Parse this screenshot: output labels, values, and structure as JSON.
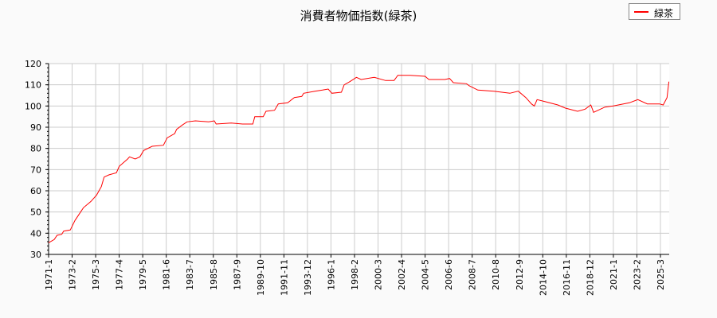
{
  "chart_data": {
    "type": "line",
    "title": "消費者物価指数(緑茶)",
    "xlabel": "",
    "ylabel": "",
    "ylim": [
      30,
      120
    ],
    "yticks": [
      30,
      40,
      50,
      60,
      70,
      80,
      90,
      100,
      110,
      120
    ],
    "xticks": [
      "1971-1",
      "1973-2",
      "1975-3",
      "1977-4",
      "1979-5",
      "1981-6",
      "1983-7",
      "1985-8",
      "1987-9",
      "1989-10",
      "1991-11",
      "1993-12",
      "1996-1",
      "1998-2",
      "2000-3",
      "2002-4",
      "2004-5",
      "2006-6",
      "2008-7",
      "2010-8",
      "2012-9",
      "2014-10",
      "2016-11",
      "2018-12",
      "2021-1",
      "2023-2",
      "2025-3"
    ],
    "grid": true,
    "legend_position": "top-right",
    "series": [
      {
        "name": "緑茶",
        "color": "#ff0000",
        "points": [
          [
            "1971-01",
            35.5
          ],
          [
            "1971-07",
            37
          ],
          [
            "1971-10",
            39
          ],
          [
            "1972-03",
            39.5
          ],
          [
            "1972-05",
            41
          ],
          [
            "1972-12",
            41.5
          ],
          [
            "1973-05",
            46
          ],
          [
            "1974-02",
            52
          ],
          [
            "1974-10",
            55
          ],
          [
            "1975-04",
            58
          ],
          [
            "1975-09",
            62
          ],
          [
            "1975-12",
            66.5
          ],
          [
            "1976-05",
            67.5
          ],
          [
            "1977-01",
            68.5
          ],
          [
            "1977-04",
            71.5
          ],
          [
            "1978-01",
            75
          ],
          [
            "1978-03",
            76
          ],
          [
            "1978-09",
            75
          ],
          [
            "1979-02",
            76
          ],
          [
            "1979-06",
            79
          ],
          [
            "1980-03",
            81
          ],
          [
            "1981-03",
            81.5
          ],
          [
            "1981-07",
            85
          ],
          [
            "1982-03",
            87
          ],
          [
            "1982-05",
            89
          ],
          [
            "1982-11",
            91
          ],
          [
            "1983-04",
            92.5
          ],
          [
            "1984-01",
            93
          ],
          [
            "1985-03",
            92.5
          ],
          [
            "1985-09",
            93
          ],
          [
            "1985-11",
            91.5
          ],
          [
            "1987-03",
            92
          ],
          [
            "1988-03",
            91.5
          ],
          [
            "1989-02",
            91.5
          ],
          [
            "1989-04",
            95
          ],
          [
            "1990-01",
            95
          ],
          [
            "1990-04",
            97.5
          ],
          [
            "1991-01",
            98
          ],
          [
            "1991-05",
            101
          ],
          [
            "1992-03",
            101.5
          ],
          [
            "1992-10",
            104
          ],
          [
            "1993-06",
            104.5
          ],
          [
            "1993-08",
            106
          ],
          [
            "1994-08",
            107
          ],
          [
            "1995-04",
            107.5
          ],
          [
            "1995-10",
            108
          ],
          [
            "1996-02",
            106
          ],
          [
            "1996-12",
            106.5
          ],
          [
            "1997-03",
            110
          ],
          [
            "1997-09",
            111.5
          ],
          [
            "1998-04",
            113.5
          ],
          [
            "1998-09",
            112.5
          ],
          [
            "1999-11",
            113.5
          ],
          [
            "2000-11",
            112
          ],
          [
            "2001-08",
            112
          ],
          [
            "2001-12",
            114.5
          ],
          [
            "2003-01",
            114.5
          ],
          [
            "2004-05",
            114
          ],
          [
            "2004-09",
            112.5
          ],
          [
            "2006-02",
            112.5
          ],
          [
            "2006-07",
            113
          ],
          [
            "2006-11",
            111
          ],
          [
            "2008-01",
            110.5
          ],
          [
            "2008-04",
            109.5
          ],
          [
            "2009-01",
            107.5
          ],
          [
            "2010-06",
            107
          ],
          [
            "2011-11",
            106
          ],
          [
            "2012-08",
            107
          ],
          [
            "2013-04",
            104
          ],
          [
            "2013-10",
            101
          ],
          [
            "2014-01",
            100
          ],
          [
            "2014-04",
            103
          ],
          [
            "2015-01",
            102
          ],
          [
            "2016-02",
            100.5
          ],
          [
            "2016-10",
            99
          ],
          [
            "2017-11",
            97.5
          ],
          [
            "2018-07",
            98.5
          ],
          [
            "2019-01",
            100.5
          ],
          [
            "2019-04",
            97
          ],
          [
            "2020-04",
            99.5
          ],
          [
            "2021-01",
            100
          ],
          [
            "2022-06",
            101.5
          ],
          [
            "2023-03",
            103
          ],
          [
            "2024-01",
            101
          ],
          [
            "2025-02",
            101
          ],
          [
            "2025-06",
            100.5
          ],
          [
            "2025-10",
            104
          ],
          [
            "2025-11",
            108
          ],
          [
            "2025-12",
            111.5
          ]
        ]
      }
    ]
  }
}
